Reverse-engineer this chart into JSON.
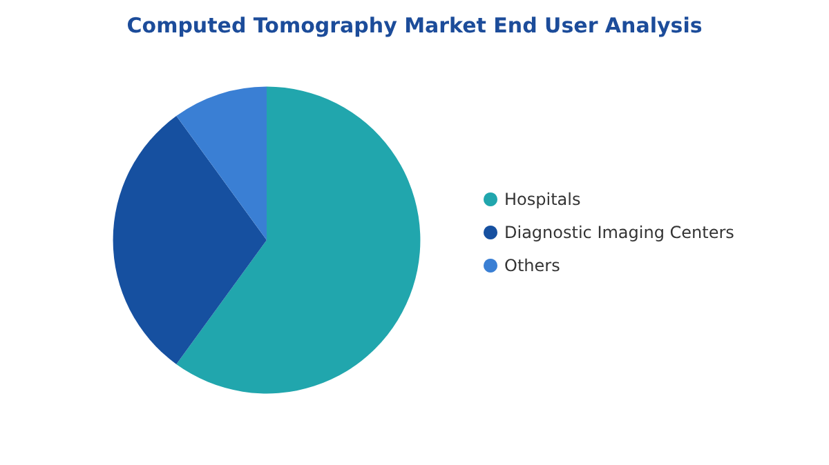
{
  "chart_data": {
    "type": "pie",
    "title": "Computed Tomography Market End User Analysis",
    "categories": [
      "Hospitals",
      "Diagnostic Imaging Centers",
      "Others"
    ],
    "values": [
      60,
      30,
      10
    ],
    "colors": [
      "#21a6ad",
      "#1650a0",
      "#3a7fd4"
    ],
    "legend": "right"
  }
}
